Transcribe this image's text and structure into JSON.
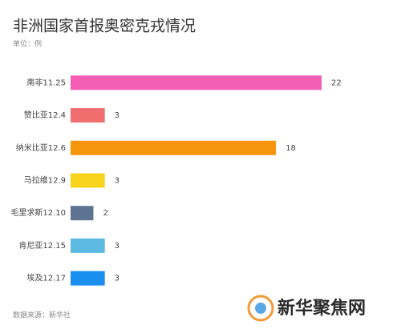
{
  "chart_data": {
    "type": "bar",
    "orientation": "horizontal",
    "title": "非洲国家首报奥密克戎情况",
    "subtitle": "单位：例",
    "source": "数据来源：新华社",
    "watermark": "新华聚焦网",
    "categories": [
      "南非11.25",
      "赞比亚12.4",
      "纳米比亚12.6",
      "马拉维12.9",
      "毛里求斯12.10",
      "肯尼亚12.15",
      "埃及12.17"
    ],
    "values": [
      22,
      3,
      18,
      3,
      2,
      3,
      3
    ],
    "colors": [
      "#f25fb4",
      "#f06e6e",
      "#f5950c",
      "#f8d31b",
      "#5d7391",
      "#5cb9e2",
      "#1b8ff0"
    ]
  }
}
